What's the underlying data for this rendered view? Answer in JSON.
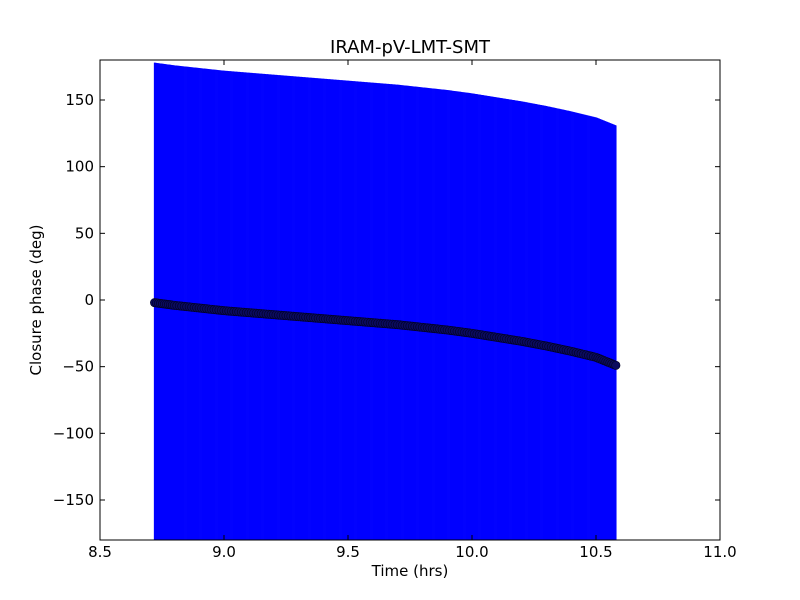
{
  "chart_data": {
    "type": "scatter",
    "title": "IRAM-pV-LMT-SMT",
    "xlabel": "Time (hrs)",
    "ylabel": "Closure phase (deg)",
    "xlim": [
      8.5,
      11.0
    ],
    "ylim": [
      -180,
      180
    ],
    "xticks": [
      8.5,
      9.0,
      9.5,
      10.0,
      10.5,
      11.0
    ],
    "xtick_labels": [
      "8.5",
      "9.0",
      "9.5",
      "10.0",
      "10.5",
      "11.0"
    ],
    "yticks": [
      -150,
      -100,
      -50,
      0,
      50,
      100,
      150
    ],
    "ytick_labels": [
      "−150",
      "−100",
      "−50",
      "0",
      "50",
      "100",
      "150"
    ],
    "grid": false,
    "errorbar_color": "#0000ff",
    "marker_color": "#0b0b5e",
    "series": [
      {
        "x": [
          8.72,
          8.8,
          8.9,
          9.0,
          9.1,
          9.2,
          9.3,
          9.4,
          9.5,
          9.6,
          9.7,
          9.8,
          9.9,
          10.0,
          10.1,
          10.2,
          10.3,
          10.4,
          10.5,
          10.58
        ],
        "y": [
          -2,
          -4,
          -6,
          -8,
          -9.5,
          -11,
          -12.5,
          -14,
          -15.5,
          -17,
          -18.5,
          -20.5,
          -22.5,
          -25,
          -28,
          -31,
          -34.5,
          -38.5,
          -43,
          -49
        ],
        "error": [
          180,
          180,
          180,
          180,
          180,
          180,
          180,
          180,
          180,
          180,
          180,
          180,
          180,
          180,
          180,
          180,
          180,
          180,
          180,
          180
        ]
      }
    ]
  }
}
